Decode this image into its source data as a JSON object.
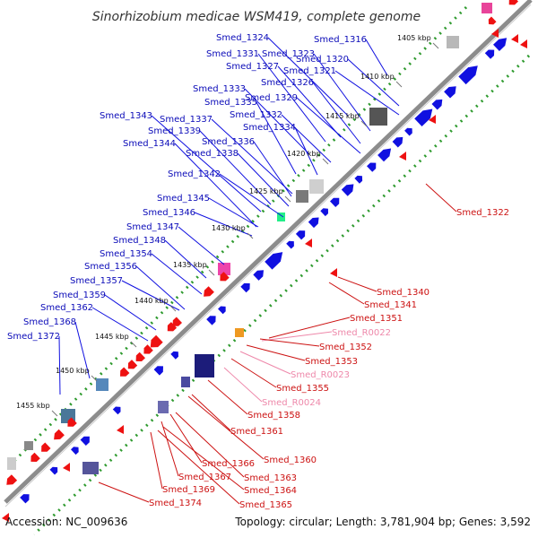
{
  "title": "Sinorhizobium medicae WSM419, complete genome",
  "accession": "Accession: NC_009636",
  "summary": "Topology: circular; Length: 3,781,904 bp; Genes: 3,592",
  "colors": {
    "backbone": "#8c8c8c",
    "forward_gene": "#1010e0",
    "reverse_gene": "#ee1111",
    "forward_label": "#0a0ab8",
    "reverse_label": "#cc1111",
    "rna_label": "#ee88aa",
    "gc_dots": "#2e9a2e",
    "scale_marker": "#777777"
  },
  "scale_ticks": [
    "1405 kbp",
    "1410 kbp",
    "1415 kbp",
    "1420 kbp",
    "1425 kbp",
    "1430 kbp",
    "1435 kbp",
    "1440 kbp",
    "1445 kbp",
    "1450 kbp",
    "1455 kbp"
  ],
  "forward_genes": [
    "Smed_1316",
    "Smed_1324",
    "Smed_1320",
    "Smed_1323",
    "Smed_1331",
    "Smed_1321",
    "Smed_1327",
    "Smed_1326",
    "Smed_1333",
    "Smed_1329",
    "Smed_1335",
    "Smed_1332",
    "Smed_1343",
    "Smed_1337",
    "Smed_1334",
    "Smed_1339",
    "Smed_1336",
    "Smed_1344",
    "Smed_1338",
    "Smed_1342",
    "Smed_1345",
    "Smed_1346",
    "Smed_1347",
    "Smed_1348",
    "Smed_1354",
    "Smed_1356",
    "Smed_1357",
    "Smed_1359",
    "Smed_1362",
    "Smed_1368",
    "Smed_1372"
  ],
  "reverse_genes": [
    "Smed_1322",
    "Smed_1340",
    "Smed_1341",
    "Smed_1351",
    "Smed_R0022",
    "Smed_1352",
    "Smed_1353",
    "Smed_R0023",
    "Smed_1355",
    "Smed_R0024",
    "Smed_1358",
    "Smed_1361",
    "Smed_1360",
    "Smed_1366",
    "Smed_1363",
    "Smed_1367",
    "Smed_1364",
    "Smed_1369",
    "Smed_1365",
    "Smed_1374"
  ]
}
